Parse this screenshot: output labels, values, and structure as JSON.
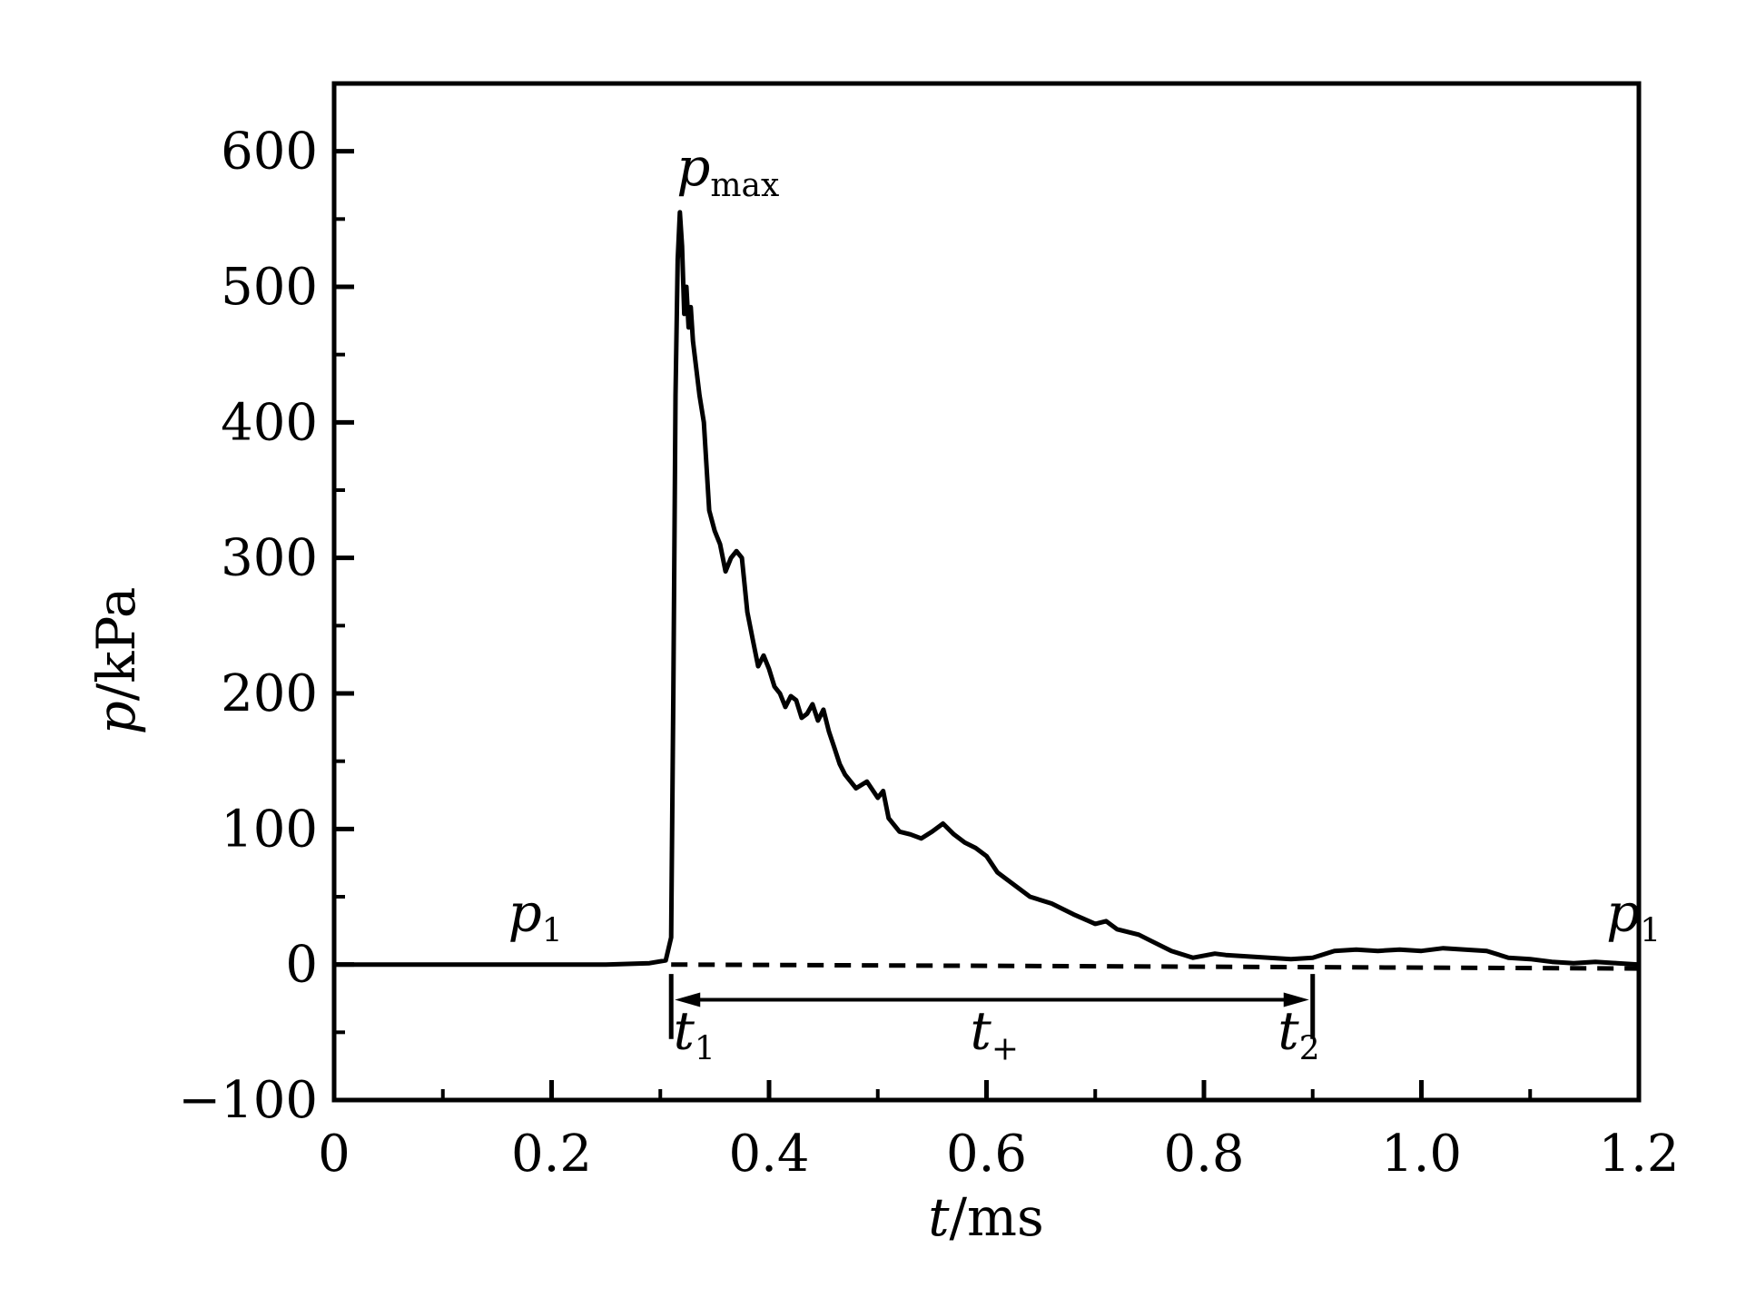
{
  "chart_data": {
    "type": "line",
    "xlabel": {
      "var": "t",
      "unit": "/ms"
    },
    "ylabel": {
      "var": "p",
      "unit": "/kPa"
    },
    "xlim": [
      0,
      1.2
    ],
    "ylim": [
      -100,
      650
    ],
    "xticks": [
      0,
      0.2,
      0.4,
      0.6,
      0.8,
      1.0,
      1.2
    ],
    "xtick_labels": [
      "0",
      "0.2",
      "0.4",
      "0.6",
      "0.8",
      "1.0",
      "1.2"
    ],
    "yticks": [
      -100,
      0,
      100,
      200,
      300,
      400,
      500,
      600
    ],
    "ytick_labels": [
      "−100",
      "0",
      "100",
      "200",
      "300",
      "400",
      "500",
      "600"
    ],
    "grid": false,
    "series": [
      {
        "style": "solid",
        "x": [
          0,
          0.05,
          0.1,
          0.15,
          0.2,
          0.25,
          0.29,
          0.305,
          0.31,
          0.312,
          0.314,
          0.316,
          0.318,
          0.32,
          0.322,
          0.324,
          0.326,
          0.328,
          0.33,
          0.333,
          0.336,
          0.34,
          0.345,
          0.35,
          0.355,
          0.36,
          0.365,
          0.37,
          0.375,
          0.38,
          0.385,
          0.39,
          0.395,
          0.4,
          0.405,
          0.41,
          0.415,
          0.42,
          0.425,
          0.43,
          0.435,
          0.44,
          0.445,
          0.45,
          0.455,
          0.46,
          0.465,
          0.47,
          0.48,
          0.49,
          0.5,
          0.505,
          0.51,
          0.52,
          0.53,
          0.54,
          0.55,
          0.56,
          0.57,
          0.58,
          0.59,
          0.6,
          0.61,
          0.62,
          0.64,
          0.66,
          0.68,
          0.7,
          0.71,
          0.72,
          0.74,
          0.75,
          0.77,
          0.79,
          0.81,
          0.82,
          0.84,
          0.86,
          0.88,
          0.9,
          0.92,
          0.94,
          0.96,
          0.98,
          1.0,
          1.02,
          1.04,
          1.06,
          1.08,
          1.1,
          1.12,
          1.14,
          1.16,
          1.18,
          1.2
        ],
        "y": [
          0,
          0,
          0,
          0,
          0,
          0,
          1,
          3,
          20,
          200,
          420,
          520,
          555,
          530,
          480,
          500,
          470,
          485,
          460,
          440,
          420,
          400,
          335,
          320,
          310,
          290,
          300,
          305,
          300,
          260,
          240,
          220,
          228,
          218,
          205,
          200,
          190,
          198,
          195,
          182,
          185,
          192,
          180,
          188,
          172,
          160,
          148,
          140,
          130,
          135,
          123,
          128,
          108,
          98,
          96,
          93,
          98,
          104,
          96,
          90,
          86,
          80,
          68,
          62,
          50,
          45,
          37,
          30,
          32,
          26,
          22,
          18,
          10,
          5,
          8,
          7,
          6,
          5,
          4,
          5,
          10,
          11,
          10,
          11,
          10,
          12,
          11,
          10,
          5,
          4,
          2,
          1,
          2,
          1,
          0
        ]
      },
      {
        "style": "dashed",
        "x": [
          0.31,
          1.2
        ],
        "y": [
          0,
          -3
        ]
      }
    ],
    "annotations": {
      "p_max": {
        "main": "p",
        "sub": "max",
        "x": 0.315,
        "y": 575
      },
      "p1_left": {
        "main": "p",
        "sub": "1",
        "x": 0.16,
        "y": 25
      },
      "p1_right": {
        "main": "p",
        "sub": "1",
        "x": 1.17,
        "y": 25
      },
      "t1": {
        "main": "t",
        "sub": "1",
        "x": 0.312,
        "y": -62
      },
      "t_plus": {
        "main": "t",
        "sub": "+",
        "x": 0.585,
        "y": -62
      },
      "t2": {
        "main": "t",
        "sub": "2",
        "x": 0.868,
        "y": -62
      },
      "interval": {
        "x_start": 0.31,
        "x_end": 0.9,
        "y": -26
      }
    }
  }
}
